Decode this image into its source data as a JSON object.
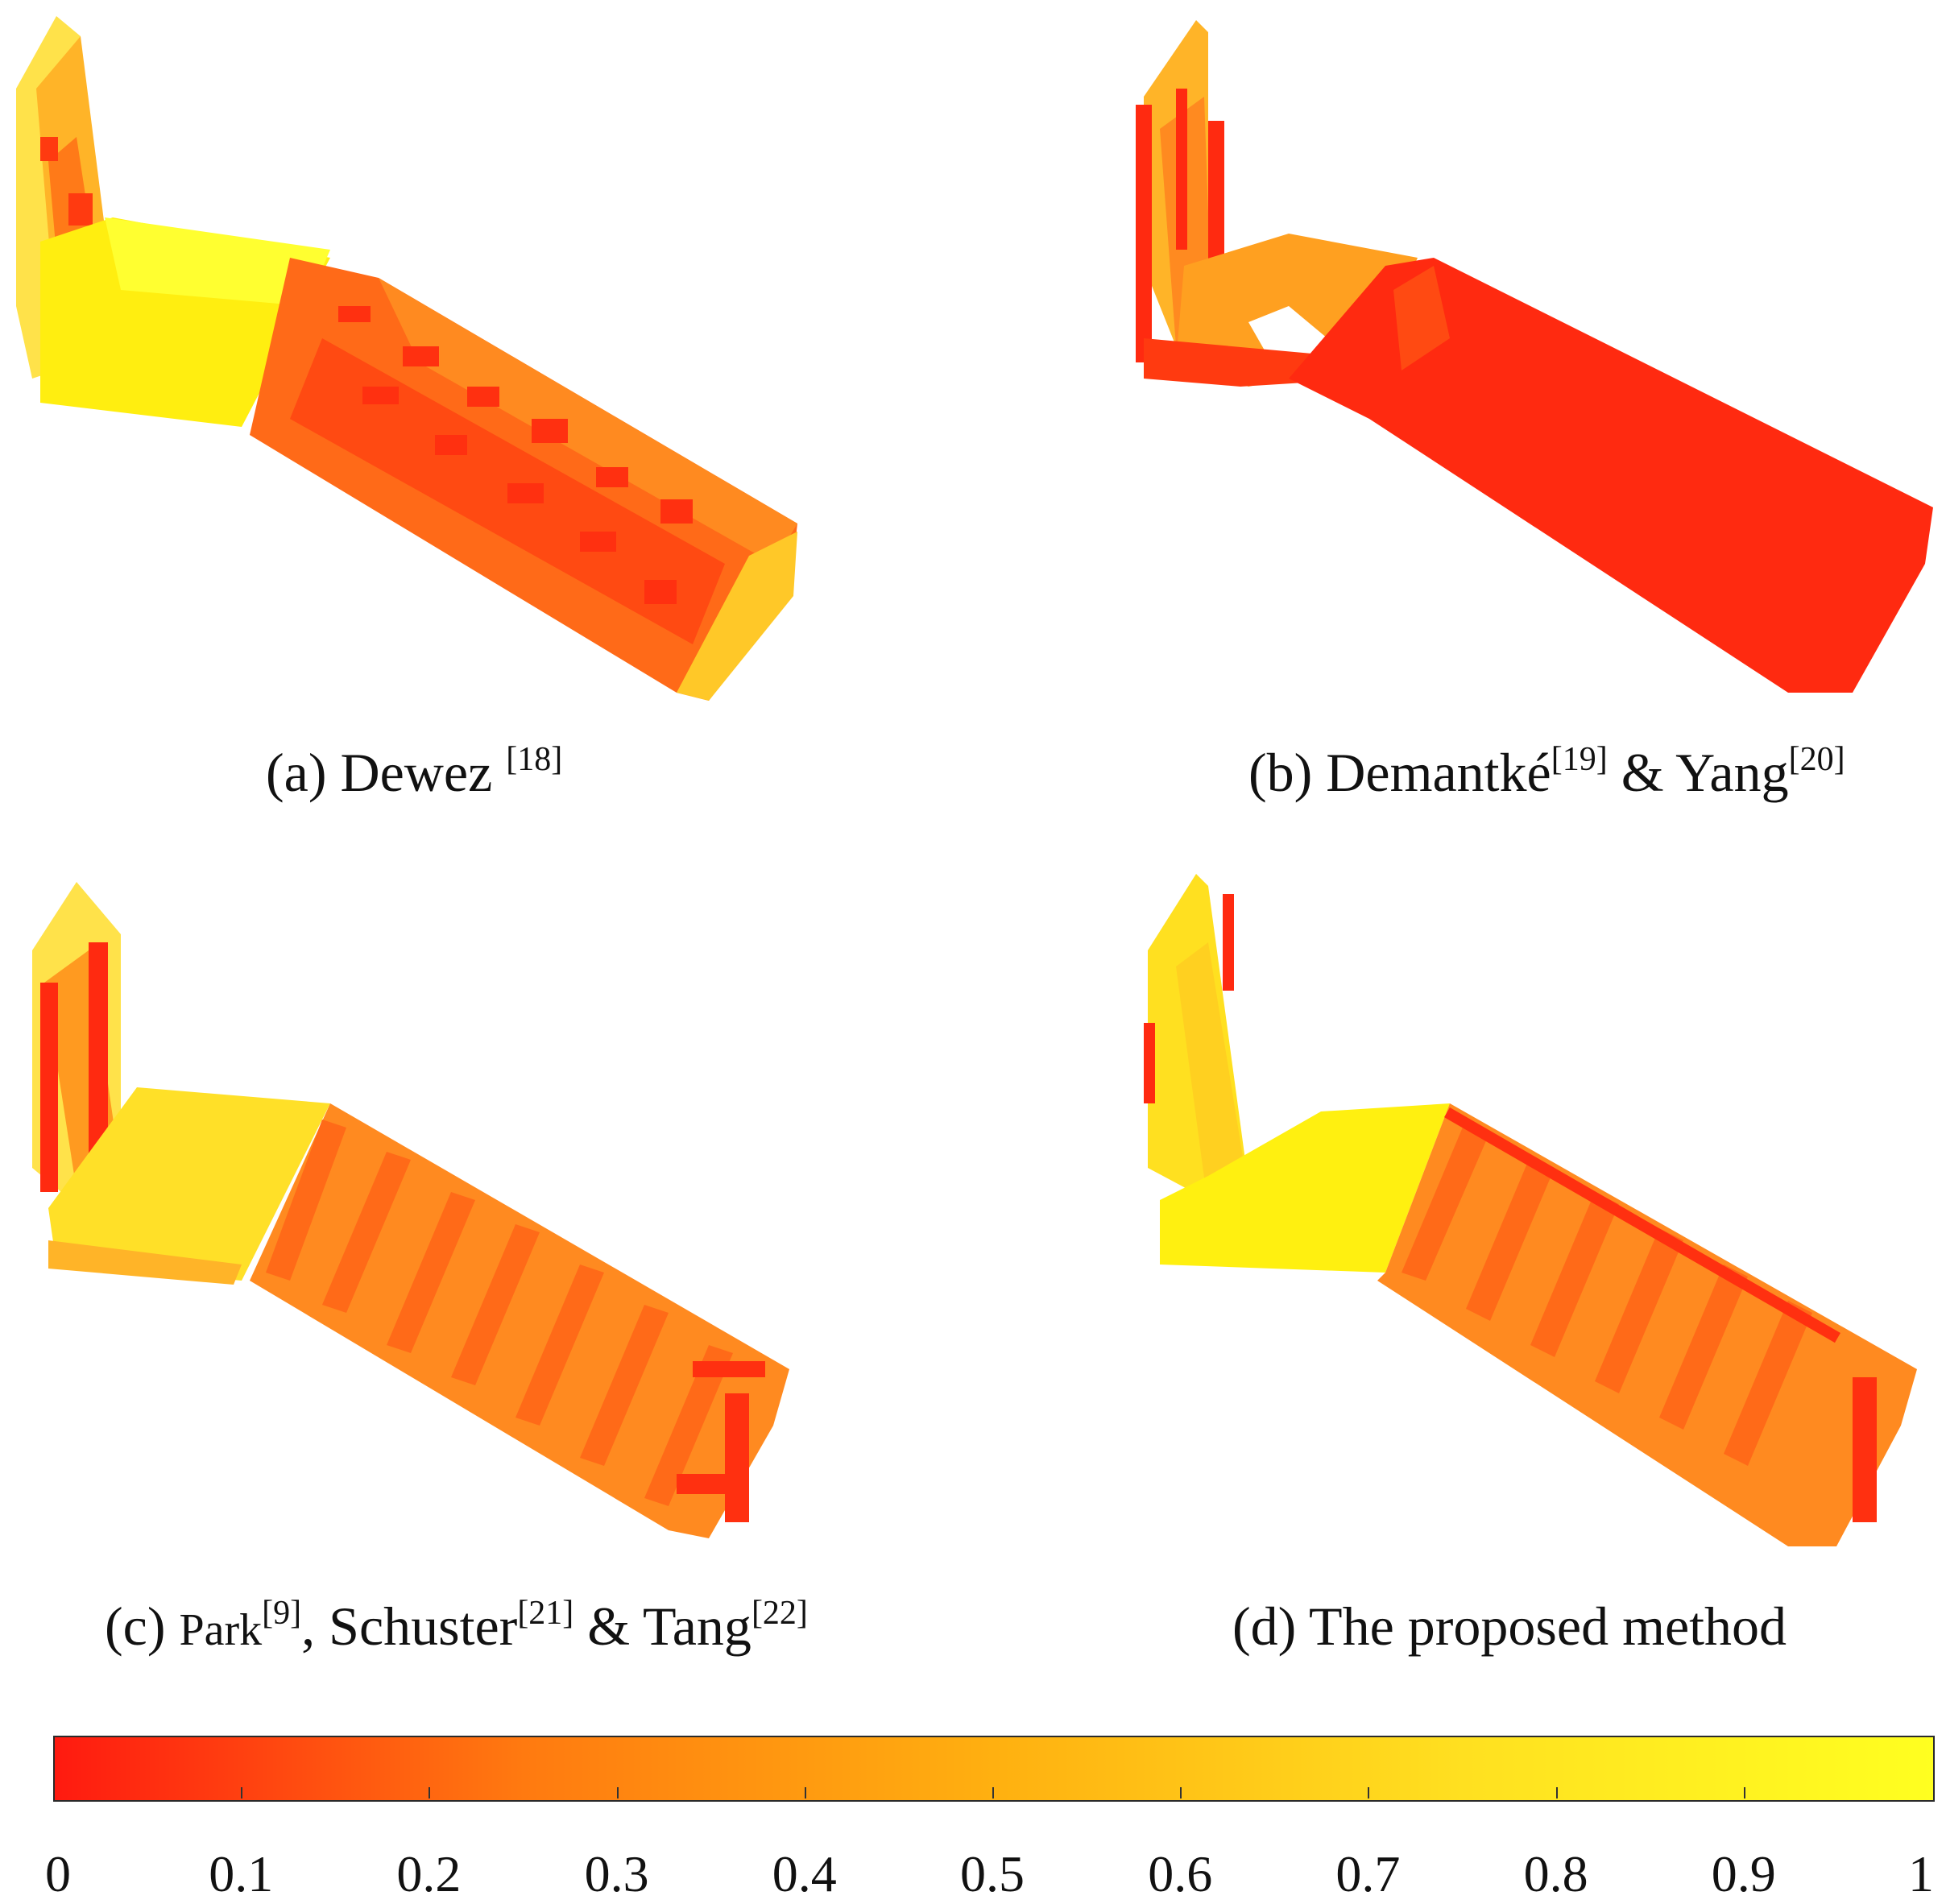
{
  "panels": {
    "a": {
      "prefix": "(a) ",
      "name": "Dewez ",
      "ref1": "[18]"
    },
    "b": {
      "prefix": "(b) ",
      "name1": "Demantké",
      "ref1": "[19]",
      "mid": " & Yang",
      "ref2": "[20]"
    },
    "c": {
      "prefix": "(c) ",
      "name1": "Park",
      "ref1": "[9]",
      "mid1": ", Schuster",
      "ref2": "[21]",
      "mid2": " & Tang",
      "ref3": "[22]"
    },
    "d": {
      "caption": "(d) The proposed method"
    }
  },
  "colorbar": {
    "colors": [
      "#ff1a10",
      "#ff7a10",
      "#ffb010",
      "#ffe020",
      "#ffff20"
    ],
    "ticks": [
      "0",
      "0.1",
      "0.2",
      "0.3",
      "0.4",
      "0.5",
      "0.6",
      "0.7",
      "0.8",
      "0.9",
      "1"
    ]
  }
}
